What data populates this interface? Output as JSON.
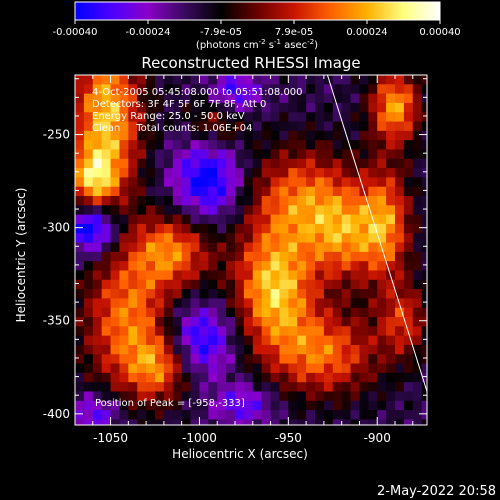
{
  "chart_data": {
    "type": "heatmap",
    "title": "Reconstructed RHESSI Image",
    "colorbar": {
      "tick_labels": [
        "-0.00040",
        "-0.00024",
        "-7.9e-05",
        "7.9e-05",
        "0.00024",
        "0.00040"
      ],
      "range": [
        -0.0004,
        0.0004
      ],
      "units_parts": [
        "(photons cm",
        "-2",
        " s",
        "-1",
        " asec",
        "-2",
        ")"
      ],
      "colormap": [
        "#0000ff",
        "#4c00ff",
        "#8a00c8",
        "#3a0a60",
        "#000000",
        "#6a0000",
        "#c81400",
        "#ff6000",
        "#ffb000",
        "#ffff80",
        "#ffffff"
      ]
    },
    "annotations": [
      "4-Oct-2005 05:45:08.000 to 05:51:08.000",
      "Detectors: 3F 4F 5F 6F 7F 8F, Att 0",
      "Energy Range: 25.0 - 50.0 keV",
      "Clean     Total counts: 1.06E+04"
    ],
    "peak_label": "Position of Peak = [-958,-333]",
    "xlabel": "Heliocentric X (arcsec)",
    "ylabel": "Heliocentric Y (arcsec)",
    "xlim": [
      -1070,
      -872
    ],
    "ylim": [
      -406,
      -218
    ],
    "x_ticks": [
      -1050,
      -1000,
      -950,
      -900
    ],
    "y_ticks": [
      -250,
      -300,
      -350,
      -400
    ],
    "x_tick_labels": [
      "-1050",
      "-1000",
      "-950",
      "-900"
    ],
    "y_tick_labels": [
      "-250",
      "-300",
      "-350",
      "-400"
    ],
    "limb_line": [
      [
        -928,
        -218
      ],
      [
        -872,
        -388
      ]
    ],
    "blobs": [
      {
        "x": -1052,
        "y": -240,
        "sx": 14,
        "sy": 30,
        "a": 0.0004
      },
      {
        "x": -1060,
        "y": -275,
        "sx": 10,
        "sy": 12,
        "a": 0.0003
      },
      {
        "x": -1015,
        "y": -312,
        "sx": 16,
        "sy": 14,
        "a": 0.0003
      },
      {
        "x": -1040,
        "y": -350,
        "sx": 18,
        "sy": 28,
        "a": 0.00032
      },
      {
        "x": -1022,
        "y": -375,
        "sx": 12,
        "sy": 12,
        "a": 0.00025
      },
      {
        "x": -958,
        "y": -333,
        "sx": 16,
        "sy": 22,
        "a": 0.0004
      },
      {
        "x": -930,
        "y": -368,
        "sx": 22,
        "sy": 16,
        "a": 0.0003
      },
      {
        "x": -943,
        "y": -285,
        "sx": 22,
        "sy": 20,
        "a": 0.0003
      },
      {
        "x": -918,
        "y": -305,
        "sx": 14,
        "sy": 18,
        "a": 0.00026
      },
      {
        "x": -890,
        "y": -235,
        "sx": 10,
        "sy": 14,
        "a": 0.00036
      },
      {
        "x": -895,
        "y": -298,
        "sx": 10,
        "sy": 22,
        "a": 0.0003
      },
      {
        "x": -885,
        "y": -350,
        "sx": 10,
        "sy": 14,
        "a": 0.00022
      },
      {
        "x": -990,
        "y": -243,
        "sx": 12,
        "sy": 10,
        "a": 0.00018
      },
      {
        "x": -1060,
        "y": -300,
        "sx": 10,
        "sy": 10,
        "a": -0.00036
      },
      {
        "x": -995,
        "y": -275,
        "sx": 14,
        "sy": 16,
        "a": -0.00028
      },
      {
        "x": -1000,
        "y": -360,
        "sx": 14,
        "sy": 14,
        "a": -0.00026
      },
      {
        "x": -980,
        "y": -228,
        "sx": 10,
        "sy": 8,
        "a": -0.00022
      },
      {
        "x": -1058,
        "y": -400,
        "sx": 10,
        "sy": 8,
        "a": -0.0002
      },
      {
        "x": -975,
        "y": -395,
        "sx": 12,
        "sy": 8,
        "a": -0.00018
      }
    ],
    "background": -0.00014
  },
  "footer": {
    "timestamp": "2-May-2022 20:58"
  }
}
